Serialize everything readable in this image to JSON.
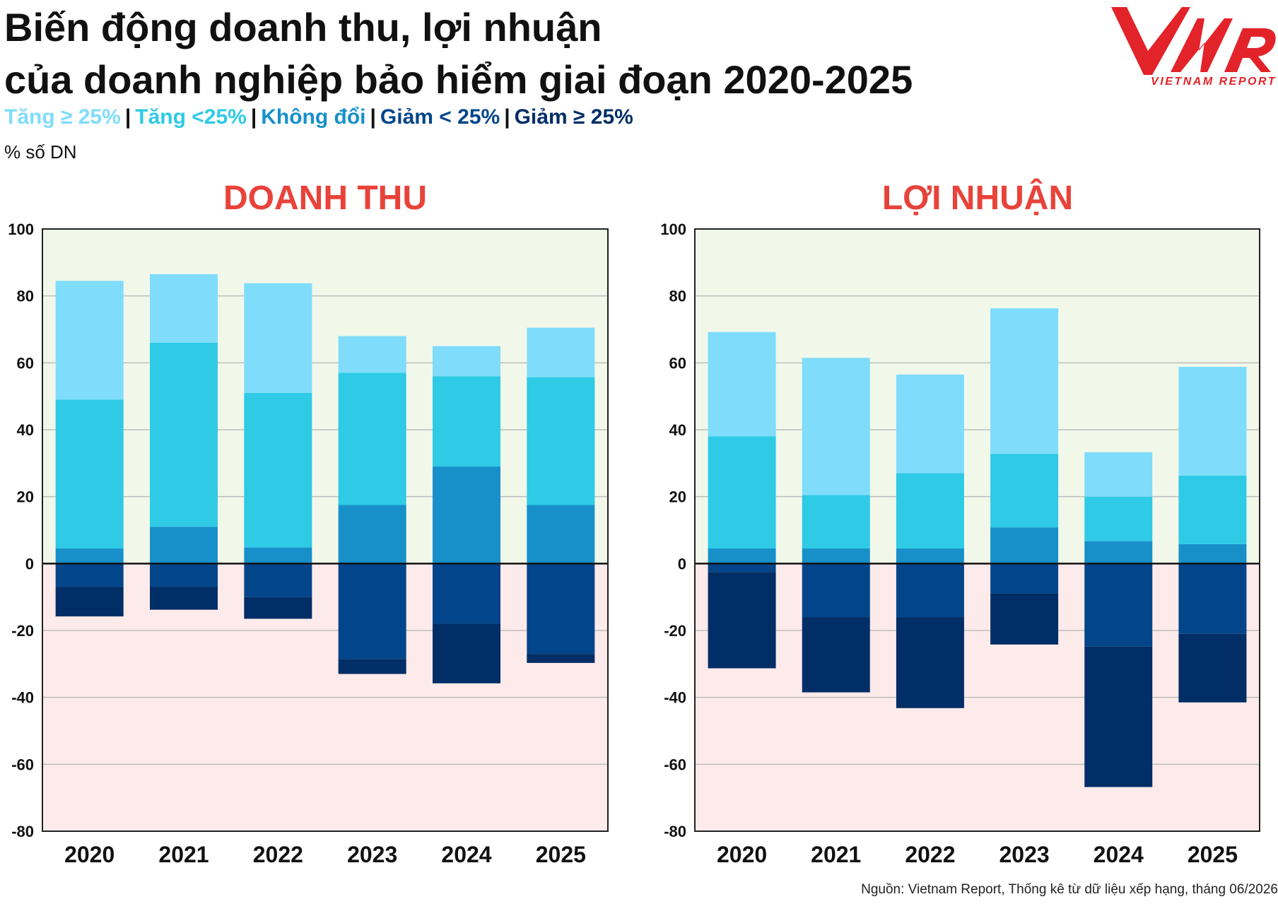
{
  "header": {
    "title_line1": "Biến động doanh thu, lợi nhuận",
    "title_line2": "của doanh nghiệp bảo hiểm giai đoạn 2020-2025",
    "unit_label": "% số DN"
  },
  "logo": {
    "wordmark": "VNR",
    "tagline": "VIETNAM REPORT",
    "color": "#e2232a"
  },
  "legend": {
    "items": [
      {
        "label": "Tăng ≥ 25%",
        "color": "#7fdcfb"
      },
      {
        "label": "Tăng <25%",
        "color": "#2ecae6"
      },
      {
        "label": "Không đổi",
        "color": "#1790ca"
      },
      {
        "label": "Giảm < 25%",
        "color": "#03458a"
      },
      {
        "label": "Giảm ≥ 25%",
        "color": "#012e66"
      }
    ]
  },
  "source": "Nguồn: Vietnam Report, Thống kê từ dữ liệu xếp hạng, tháng 06/2026",
  "chart_data": [
    {
      "type": "bar",
      "stacked": true,
      "title": "DOANH THU",
      "categories": [
        "2020",
        "2021",
        "2022",
        "2023",
        "2024",
        "2025"
      ],
      "ylim": [
        -80,
        100
      ],
      "yticks": [
        100,
        80,
        60,
        40,
        20,
        0,
        -20,
        -40,
        -60,
        -80
      ],
      "grid": true,
      "background": {
        "positive": "#f1f8ea",
        "negative": "#fdeaea"
      },
      "series": [
        {
          "name": "Tăng ≥ 25%",
          "color": "#7fdcfb",
          "values": [
            35.5,
            20.5,
            32.8,
            11.0,
            9.0,
            14.8
          ]
        },
        {
          "name": "Tăng <25%",
          "color": "#2ecae6",
          "values": [
            44.5,
            55.0,
            46.2,
            39.5,
            27.0,
            38.2
          ]
        },
        {
          "name": "Không đổi",
          "color": "#1790ca",
          "values": [
            4.5,
            11.0,
            4.8,
            17.5,
            29.0,
            17.5
          ]
        },
        {
          "name": "Giảm < 25%",
          "color": "#03458a",
          "values": [
            -7.0,
            -7.0,
            -10.0,
            -28.5,
            -18.0,
            -27.0
          ]
        },
        {
          "name": "Giảm ≥ 25%",
          "color": "#012e66",
          "values": [
            -8.8,
            -6.8,
            -6.5,
            -4.5,
            -17.8,
            -2.7
          ]
        }
      ]
    },
    {
      "type": "bar",
      "stacked": true,
      "title": "LỢI NHUẬN",
      "categories": [
        "2020",
        "2021",
        "2022",
        "2023",
        "2024",
        "2025"
      ],
      "ylim": [
        -80,
        100
      ],
      "yticks": [
        100,
        80,
        60,
        40,
        20,
        0,
        -20,
        -40,
        -60,
        -80
      ],
      "grid": true,
      "background": {
        "positive": "#f1f8ea",
        "negative": "#fdeaea"
      },
      "series": [
        {
          "name": "Tăng ≥ 25%",
          "color": "#7fdcfb",
          "values": [
            31.2,
            41.0,
            29.5,
            43.5,
            13.3,
            32.5
          ]
        },
        {
          "name": "Tăng <25%",
          "color": "#2ecae6",
          "values": [
            33.5,
            16.0,
            22.5,
            22.0,
            13.3,
            20.5
          ]
        },
        {
          "name": "Không đổi",
          "color": "#1790ca",
          "values": [
            4.5,
            4.5,
            4.5,
            10.8,
            6.7,
            5.8
          ]
        },
        {
          "name": "Giảm < 25%",
          "color": "#03458a",
          "values": [
            -2.5,
            -16.0,
            -16.0,
            -9.0,
            -24.8,
            -21.0
          ]
        },
        {
          "name": "Giảm ≥ 25%",
          "color": "#012e66",
          "values": [
            -28.8,
            -22.5,
            -27.2,
            -15.2,
            -42.0,
            -20.5
          ]
        }
      ]
    }
  ]
}
